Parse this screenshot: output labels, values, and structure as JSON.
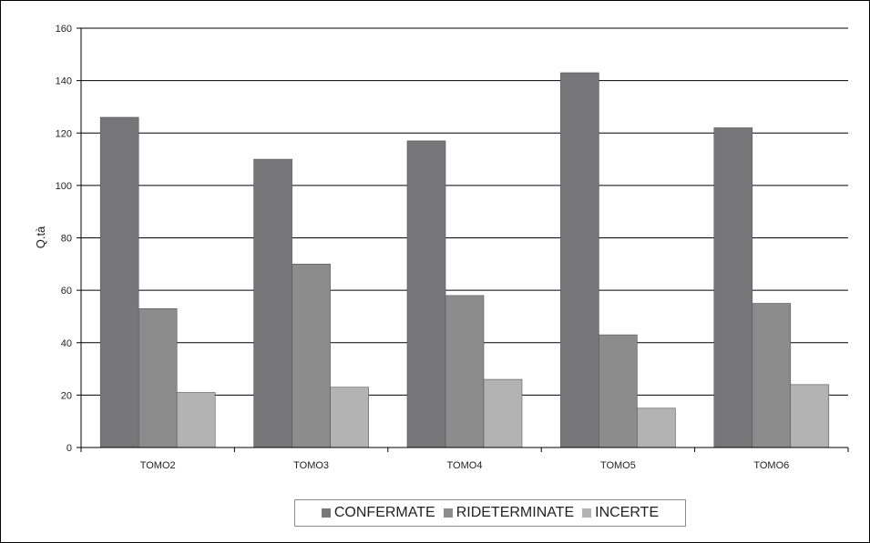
{
  "chart_data": {
    "type": "bar",
    "title": "",
    "xlabel": "",
    "ylabel": "Q.tà",
    "ylim": [
      0,
      160
    ],
    "yticks": [
      0,
      20,
      40,
      60,
      80,
      100,
      120,
      140,
      160
    ],
    "grid": true,
    "legend_position": "bottom",
    "categories": [
      "TOMO2",
      "TOMO3",
      "TOMO4",
      "TOMO5",
      "TOMO6"
    ],
    "series": [
      {
        "name": "CONFERMATE",
        "color": "#77777a",
        "values": [
          126,
          110,
          117,
          143,
          122
        ]
      },
      {
        "name": "RIDETERMINATE",
        "color": "#8c8c8c",
        "values": [
          53,
          70,
          58,
          43,
          55
        ]
      },
      {
        "name": "INCERTE",
        "color": "#b3b3b3",
        "values": [
          21,
          23,
          26,
          15,
          24
        ]
      }
    ]
  }
}
